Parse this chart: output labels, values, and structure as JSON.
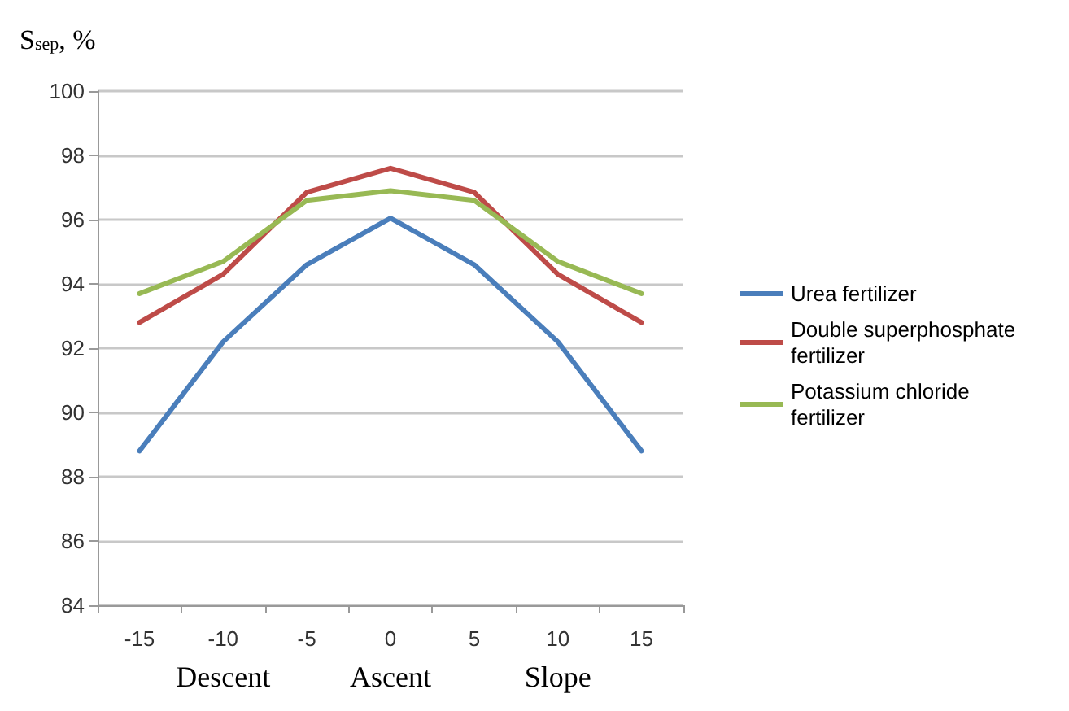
{
  "chart_data": {
    "type": "line",
    "ylabel": "S$_{sep}$, %",
    "categories": [
      "-15",
      "-10",
      "-5",
      "0",
      "5",
      "10",
      "15"
    ],
    "series": [
      {
        "name": "Urea fertilizer",
        "color": "#4a7ebb",
        "values": [
          88.8,
          92.2,
          94.6,
          96.05,
          94.6,
          92.2,
          88.8
        ]
      },
      {
        "name": "Double superphosphate fertilizer",
        "color": "#be4b48",
        "values": [
          92.8,
          94.3,
          96.85,
          97.6,
          96.85,
          94.3,
          92.8
        ]
      },
      {
        "name": "Potassium chloride fertilizer",
        "color": "#98b954",
        "values": [
          93.7,
          94.7,
          96.6,
          96.9,
          96.6,
          94.7,
          93.7
        ]
      }
    ],
    "ylim": [
      84,
      100
    ],
    "yticks": [
      84,
      86,
      88,
      90,
      92,
      94,
      96,
      98,
      100
    ],
    "grid": "y",
    "legend": "right",
    "marker": "none",
    "line_style": "solid",
    "annotations": [
      "Descent",
      "Ascent",
      "Slope"
    ]
  }
}
